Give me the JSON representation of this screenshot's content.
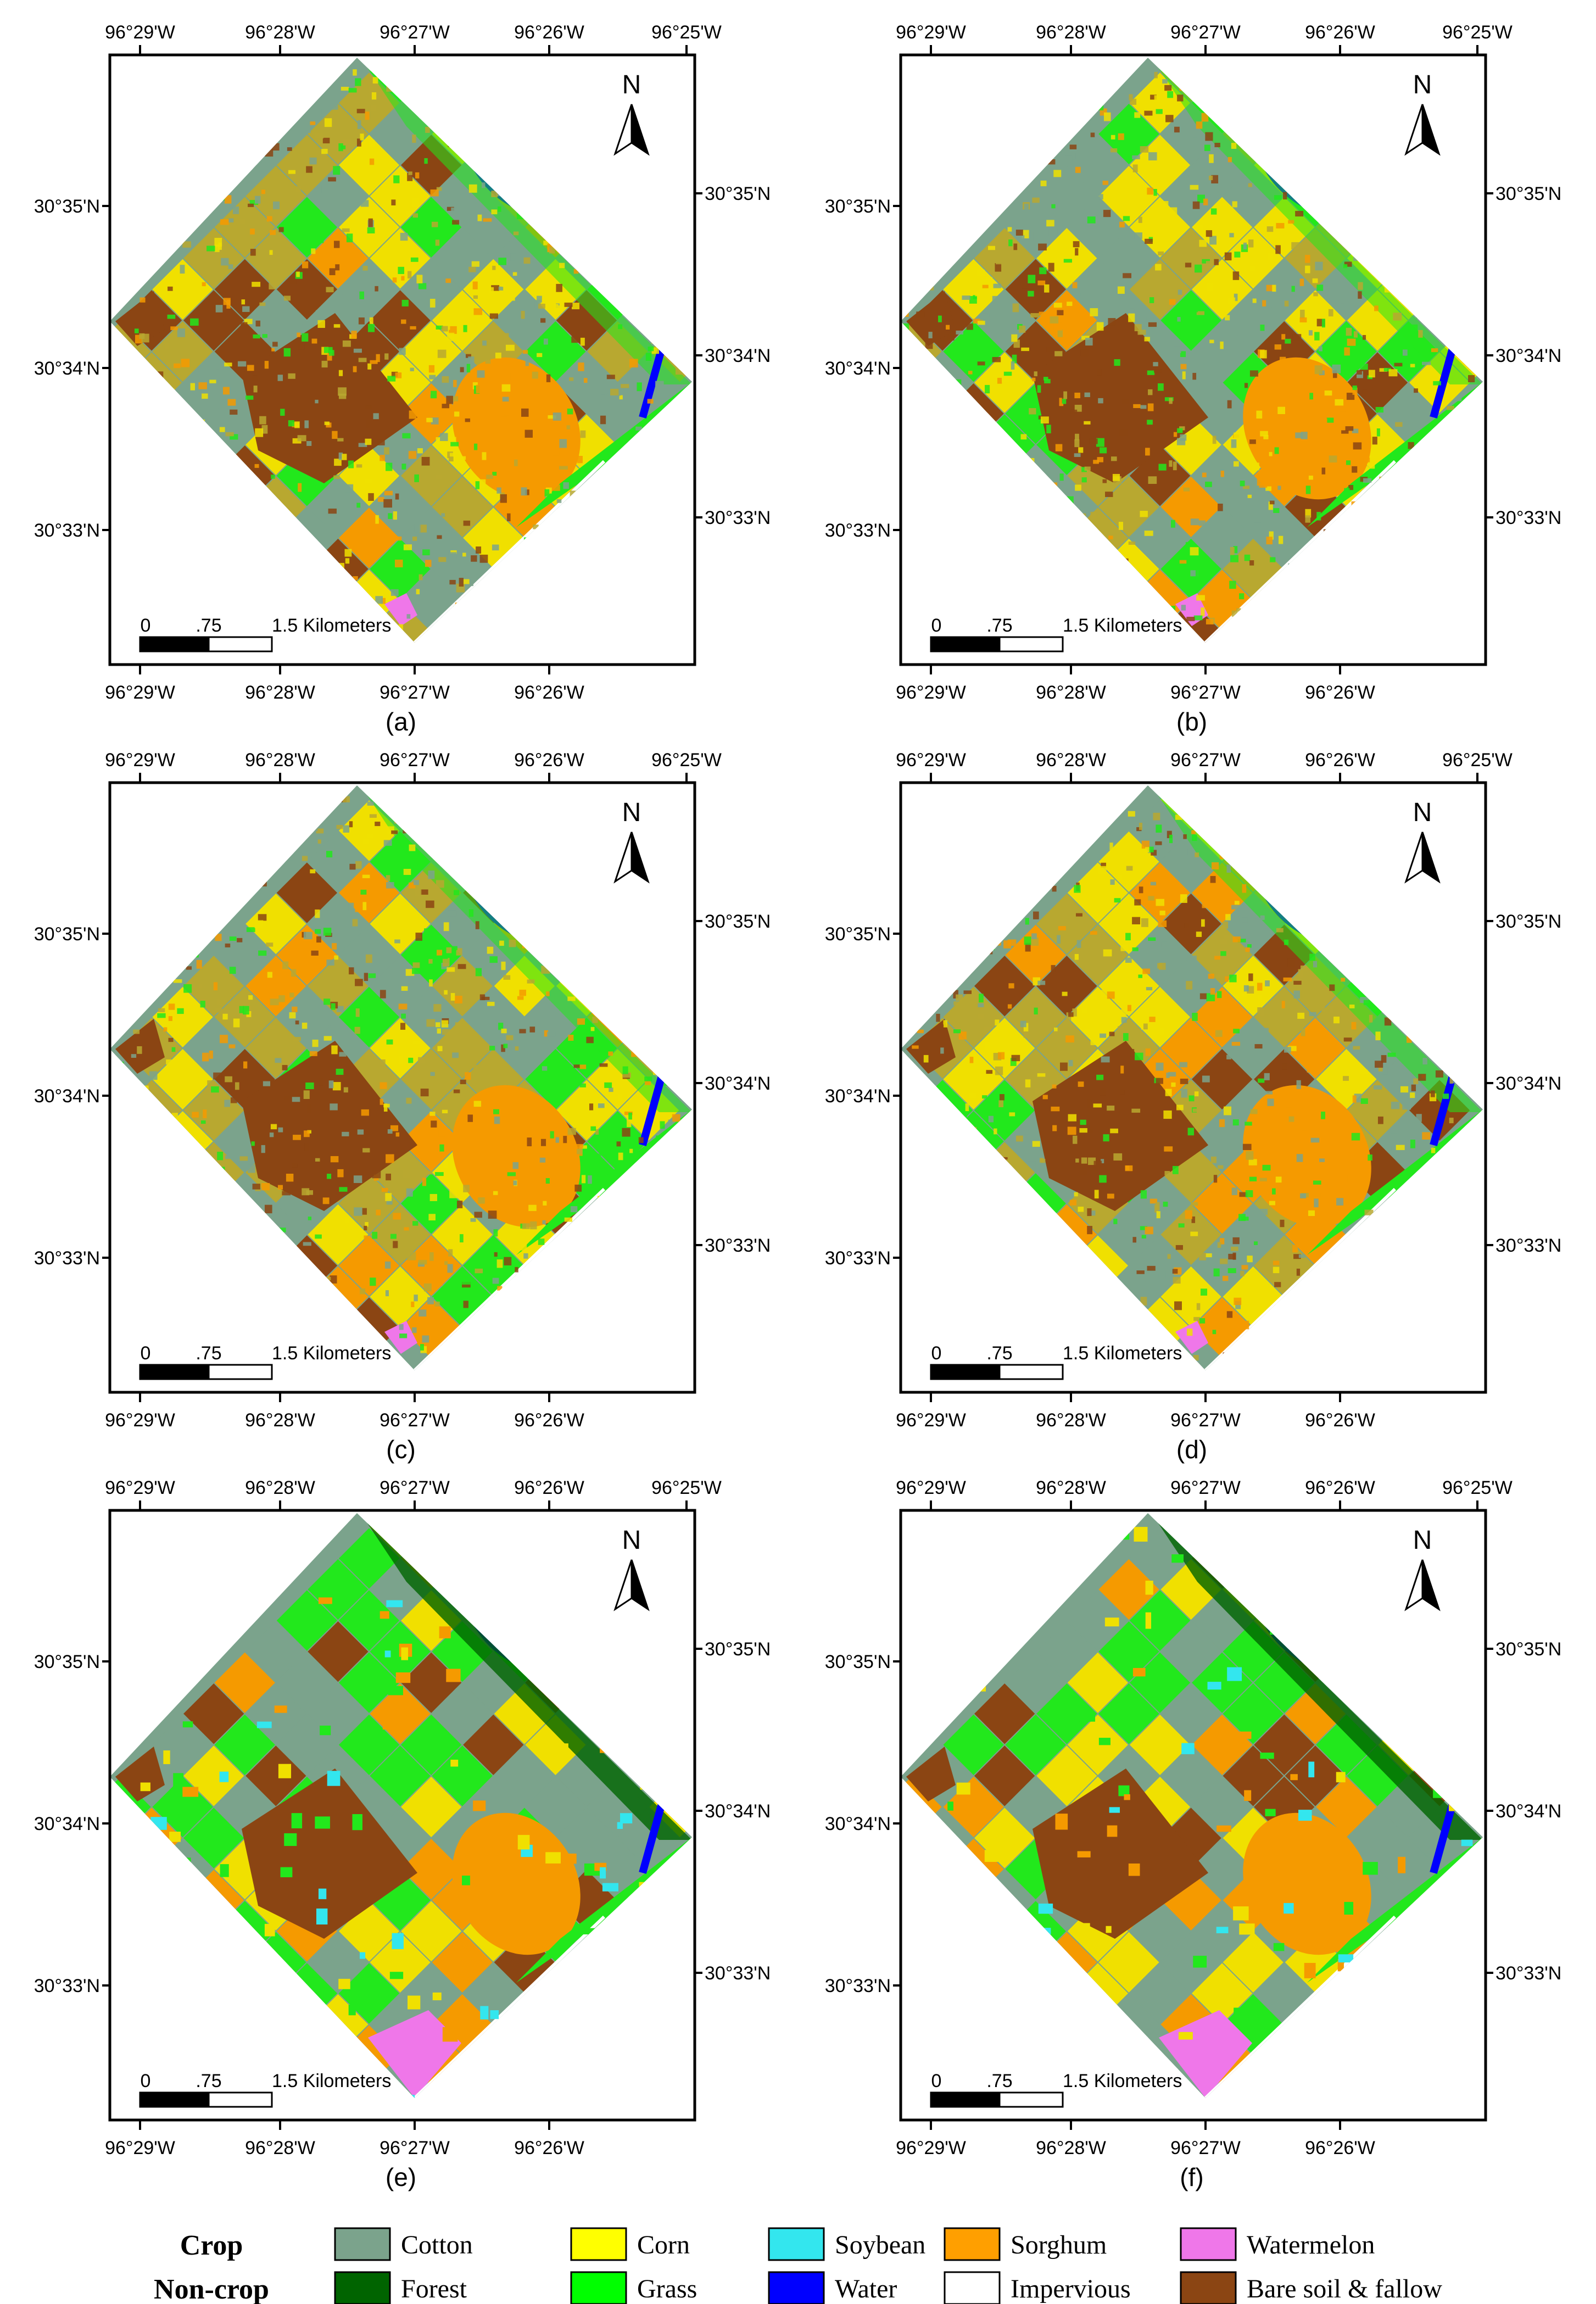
{
  "map_panels": [
    {
      "id": "a",
      "label": "(a)",
      "style": "noisy"
    },
    {
      "id": "b",
      "label": "(b)",
      "style": "noisy"
    },
    {
      "id": "c",
      "label": "(c)",
      "style": "noisy"
    },
    {
      "id": "d",
      "label": "(d)",
      "style": "noisy"
    },
    {
      "id": "e",
      "label": "(e)",
      "style": "smooth"
    },
    {
      "id": "f",
      "label": "(f)",
      "style": "smooth"
    }
  ],
  "axes": {
    "top_lon_ticks": [
      "96°29'W",
      "96°28'W",
      "96°27'W",
      "96°26'W",
      "96°25'W"
    ],
    "bottom_lon_ticks": [
      "96°29'W",
      "96°28'W",
      "96°27'W",
      "96°26'W"
    ],
    "left_lat_ticks": [
      "30°35'N",
      "30°34'N",
      "30°33'N"
    ],
    "right_lat_ticks": [
      "30°35'N",
      "30°34'N",
      "30°33'N"
    ]
  },
  "north_arrow_label": "N",
  "scale_bar": {
    "ticks": [
      "0",
      ".75",
      "1.5 Kilometers"
    ]
  },
  "legend": {
    "crop_title": "Crop",
    "noncrop_title": "Non-crop",
    "crop_classes": [
      {
        "name": "Cotton",
        "color": "#7ba38c"
      },
      {
        "name": "Corn",
        "color": "#ffff00"
      },
      {
        "name": "Soybean",
        "color": "#33e6ee"
      },
      {
        "name": "Sorghum",
        "color": "#ff9f00"
      },
      {
        "name": "Watermelon",
        "color": "#ef77e9"
      }
    ],
    "noncrop_classes": [
      {
        "name": "Forest",
        "color": "#006400"
      },
      {
        "name": "Grass",
        "color": "#00ff00"
      },
      {
        "name": "Water",
        "color": "#0000ff"
      },
      {
        "name": "Impervious",
        "color": "#ffffff"
      },
      {
        "name": "Bare soil & fallow",
        "color": "#8b4513"
      }
    ]
  }
}
